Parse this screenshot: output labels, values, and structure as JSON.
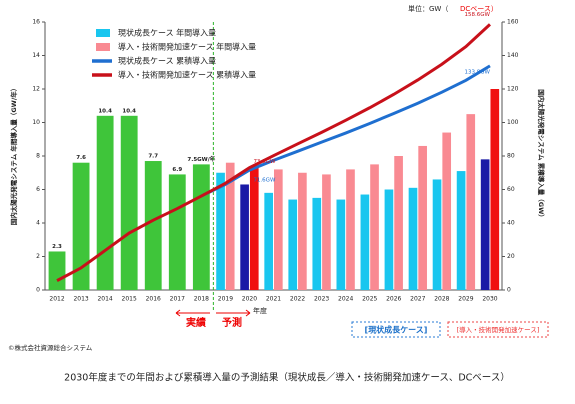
{
  "unit_label": {
    "prefix": "単位：GW（",
    "highlight": "DCベース）"
  },
  "chart_data": {
    "type": "bar",
    "categories": [
      "2012",
      "2013",
      "2014",
      "2015",
      "2016",
      "2017",
      "2018",
      "2019",
      "2020",
      "2021",
      "2022",
      "2023",
      "2024",
      "2025",
      "2026",
      "2027",
      "2028",
      "2029",
      "2030"
    ],
    "y_label": "国内太陽光発電システム 年間導入量（GW/年）",
    "y2_label": "国内太陽光発電システム 累積導入量（GW）",
    "x_label": "年度",
    "ylim": [
      0,
      16
    ],
    "yticks": [
      0,
      2,
      4,
      6,
      8,
      10,
      12,
      14,
      16
    ],
    "y2lim": [
      0,
      160
    ],
    "y2ticks": [
      0,
      20,
      40,
      60,
      80,
      100,
      120,
      140,
      160
    ],
    "series": [
      {
        "color": "#3fc53a",
        "values": [
          2.3,
          7.6,
          10.4,
          10.4,
          7.7,
          6.9,
          7.5,
          null,
          null,
          null,
          null,
          null,
          null,
          null,
          null,
          null,
          null,
          null,
          null
        ],
        "value_labels": [
          "2.3",
          "7.6",
          "10.4",
          "10.4",
          "7.7",
          "6.9",
          "7.5GW/年",
          null,
          null,
          null,
          null,
          null,
          null,
          null,
          null,
          null,
          null,
          null,
          null
        ]
      },
      {
        "name": "現状成長ケース 年間導入量",
        "color": "#19c6ef",
        "highlight_color": "#1a1aa6",
        "highlight": [
          "2020",
          "2030"
        ],
        "values": [
          null,
          null,
          null,
          null,
          null,
          null,
          null,
          7.0,
          6.3,
          5.8,
          5.4,
          5.5,
          5.4,
          5.7,
          6.0,
          6.1,
          6.6,
          7.1,
          7.8
        ]
      },
      {
        "name": "導入・技術開発加速ケース 年間導入量",
        "color": "#f98a92",
        "highlight_color": "#f01010",
        "highlight": [
          "2020",
          "2030"
        ],
        "values": [
          null,
          null,
          null,
          null,
          null,
          null,
          null,
          7.6,
          7.3,
          7.2,
          7.0,
          6.9,
          7.2,
          7.5,
          8.0,
          8.6,
          9.4,
          10.5,
          12.0
        ]
      },
      {
        "name": "現状成長ケース 累積導入量",
        "type": "line",
        "axis": "y2",
        "color": "#1f6fd0",
        "values": [
          null,
          null,
          null,
          null,
          null,
          null,
          56.1,
          63.0,
          71.6,
          77.4,
          82.8,
          88.3,
          93.7,
          99.4,
          105.4,
          111.5,
          118.1,
          125.2,
          133.8
        ],
        "value_labels": [
          null,
          null,
          null,
          null,
          null,
          null,
          null,
          null,
          "71.6GW",
          null,
          null,
          null,
          null,
          null,
          null,
          null,
          null,
          null,
          "133.8GW"
        ]
      },
      {
        "name": "導入・技術開発加速ケース 累積導入量",
        "type": "line",
        "axis": "y2",
        "color": "#c8101a",
        "values": [
          5.6,
          13.2,
          23.6,
          34.0,
          41.7,
          48.6,
          56.1,
          63.7,
          73.0,
          80.2,
          87.2,
          94.1,
          101.3,
          108.8,
          116.8,
          125.4,
          134.8,
          145.3,
          158.6
        ],
        "value_labels": [
          null,
          null,
          null,
          null,
          null,
          null,
          null,
          null,
          "73.0GW",
          null,
          null,
          null,
          null,
          null,
          null,
          null,
          null,
          null,
          "158.6GW"
        ]
      }
    ],
    "annotations": {
      "actual": "実績",
      "forecast": "予測",
      "case1": "[現状成長ケース]",
      "case2": "[導入・技術開発加速ケース]"
    }
  },
  "credit": "©株式会社資源総合システム",
  "caption": "2030年度までの年間および累積導入量の予測結果（現状成長／導入・技術開発加速ケース、DCベース）"
}
